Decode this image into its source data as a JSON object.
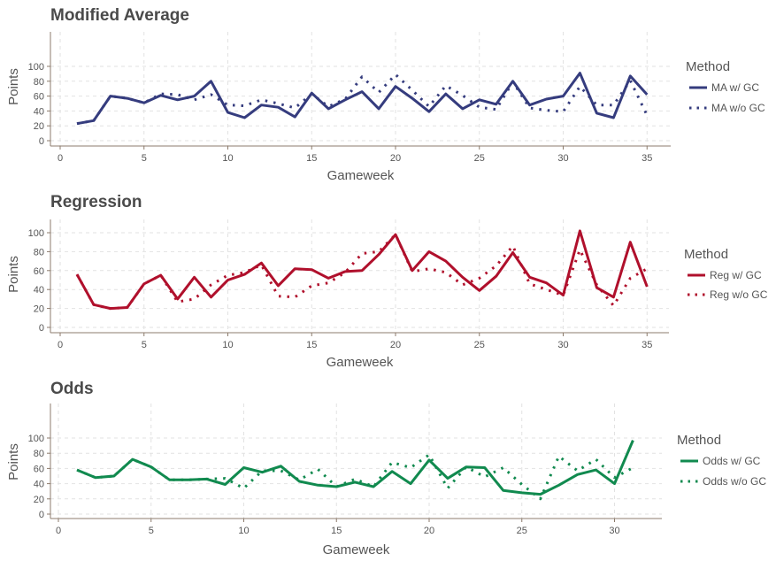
{
  "chart_data": [
    {
      "type": "line",
      "title": "Modified Average",
      "xlabel": "Gameweek",
      "ylabel": "Points",
      "xlim": [
        0,
        36.5
      ],
      "ylim": [
        0,
        112
      ],
      "xticks": [
        0,
        5,
        10,
        15,
        20,
        25,
        30,
        35
      ],
      "yticks": [
        0,
        20,
        40,
        60,
        80,
        100
      ],
      "grid": true,
      "legend_title": "Method",
      "legend_position": "right",
      "color": "#353c7e",
      "series": [
        {
          "name": "MA w/ GC",
          "style": "solid",
          "x": [
            1,
            2,
            3,
            4,
            5,
            6,
            7,
            8,
            9,
            10,
            11,
            12,
            13,
            14,
            15,
            16,
            17,
            18,
            19,
            20,
            21,
            22,
            23,
            24,
            25,
            26,
            27,
            28,
            29,
            30,
            31,
            32,
            33,
            34,
            35
          ],
          "values": [
            23,
            27,
            60,
            57,
            51,
            61,
            55,
            60,
            80,
            38,
            31,
            48,
            45,
            32,
            64,
            43,
            55,
            66,
            43,
            73,
            57,
            39,
            63,
            43,
            55,
            49,
            80,
            48,
            56,
            60,
            91,
            37,
            31,
            87,
            62
          ]
        },
        {
          "name": "MA w/o GC",
          "style": "dotted",
          "x": [
            1,
            2,
            3,
            4,
            5,
            6,
            7,
            8,
            9,
            10,
            11,
            12,
            13,
            14,
            15,
            16,
            17,
            18,
            19,
            20,
            21,
            22,
            23,
            24,
            25,
            26,
            27,
            28,
            29,
            30,
            31,
            32,
            33,
            34,
            35
          ],
          "values": [
            23,
            27,
            60,
            57,
            51,
            63,
            62,
            55,
            62,
            48,
            47,
            55,
            50,
            44,
            63,
            46,
            56,
            86,
            65,
            89,
            68,
            46,
            74,
            61,
            45,
            42,
            79,
            44,
            41,
            39,
            73,
            48,
            48,
            81,
            34
          ]
        }
      ]
    },
    {
      "type": "line",
      "title": "Regression",
      "xlabel": "Gameweek",
      "ylabel": "Points",
      "xlim": [
        0,
        36.5
      ],
      "ylim": [
        0,
        112
      ],
      "xticks": [
        0,
        5,
        10,
        15,
        20,
        25,
        30,
        35
      ],
      "yticks": [
        0,
        20,
        40,
        60,
        80,
        100
      ],
      "grid": true,
      "legend_title": "Method",
      "legend_position": "right",
      "color": "#b0102c",
      "series": [
        {
          "name": "Reg w/ GC",
          "style": "solid",
          "x": [
            1,
            2,
            3,
            4,
            5,
            6,
            7,
            8,
            9,
            10,
            11,
            12,
            13,
            14,
            15,
            16,
            17,
            18,
            19,
            20,
            21,
            22,
            23,
            24,
            25,
            26,
            27,
            28,
            29,
            30,
            31,
            32,
            33,
            34,
            35
          ],
          "values": [
            56,
            24,
            20,
            21,
            46,
            55,
            30,
            53,
            32,
            50,
            56,
            68,
            44,
            62,
            61,
            52,
            59,
            60,
            77,
            98,
            60,
            80,
            70,
            53,
            39,
            54,
            79,
            53,
            47,
            34,
            102,
            42,
            32,
            90,
            43
          ]
        },
        {
          "name": "Reg w/o GC",
          "style": "dotted",
          "x": [
            1,
            2,
            3,
            4,
            5,
            6,
            7,
            8,
            9,
            10,
            11,
            12,
            13,
            14,
            15,
            16,
            17,
            18,
            19,
            20,
            21,
            22,
            23,
            24,
            25,
            26,
            27,
            28,
            29,
            30,
            31,
            32,
            33,
            34,
            35
          ],
          "values": [
            56,
            24,
            20,
            21,
            46,
            55,
            27,
            30,
            45,
            55,
            58,
            66,
            33,
            32,
            44,
            47,
            58,
            78,
            80,
            98,
            59,
            62,
            58,
            45,
            52,
            65,
            86,
            46,
            40,
            34,
            82,
            45,
            23,
            52,
            62
          ]
        }
      ]
    },
    {
      "type": "line",
      "title": "Odds",
      "xlabel": "Gameweek",
      "ylabel": "Points",
      "xlim": [
        0,
        32.5
      ],
      "ylim": [
        0,
        112
      ],
      "xticks": [
        0,
        5,
        10,
        15,
        20,
        25,
        30
      ],
      "yticks": [
        0,
        20,
        40,
        60,
        80,
        100
      ],
      "grid": true,
      "legend_title": "Method",
      "legend_position": "right",
      "color": "#118a4f",
      "series": [
        {
          "name": "Odds w/ GC",
          "style": "solid",
          "x": [
            1,
            2,
            3,
            4,
            5,
            6,
            7,
            8,
            9,
            10,
            11,
            12,
            13,
            14,
            15,
            16,
            17,
            18,
            19,
            20,
            21,
            22,
            23,
            24,
            25,
            26,
            27,
            28,
            29,
            30,
            31
          ],
          "values": [
            58,
            48,
            50,
            72,
            62,
            45,
            45,
            46,
            39,
            61,
            55,
            63,
            43,
            38,
            36,
            42,
            36,
            56,
            40,
            71,
            47,
            62,
            61,
            31,
            28,
            26,
            38,
            52,
            58,
            40,
            97
          ]
        },
        {
          "name": "Odds w/o GC",
          "style": "dotted",
          "x": [
            1,
            2,
            3,
            4,
            5,
            6,
            7,
            8,
            9,
            10,
            11,
            12,
            13,
            14,
            15,
            16,
            17,
            18,
            19,
            20,
            21,
            22,
            23,
            24,
            25,
            26,
            27,
            28,
            29,
            30,
            31
          ],
          "values": [
            58,
            48,
            50,
            72,
            62,
            45,
            45,
            46,
            47,
            34,
            57,
            57,
            45,
            59,
            36,
            46,
            36,
            68,
            61,
            78,
            34,
            62,
            49,
            61,
            39,
            20,
            76,
            57,
            72,
            48,
            61
          ]
        }
      ]
    }
  ]
}
